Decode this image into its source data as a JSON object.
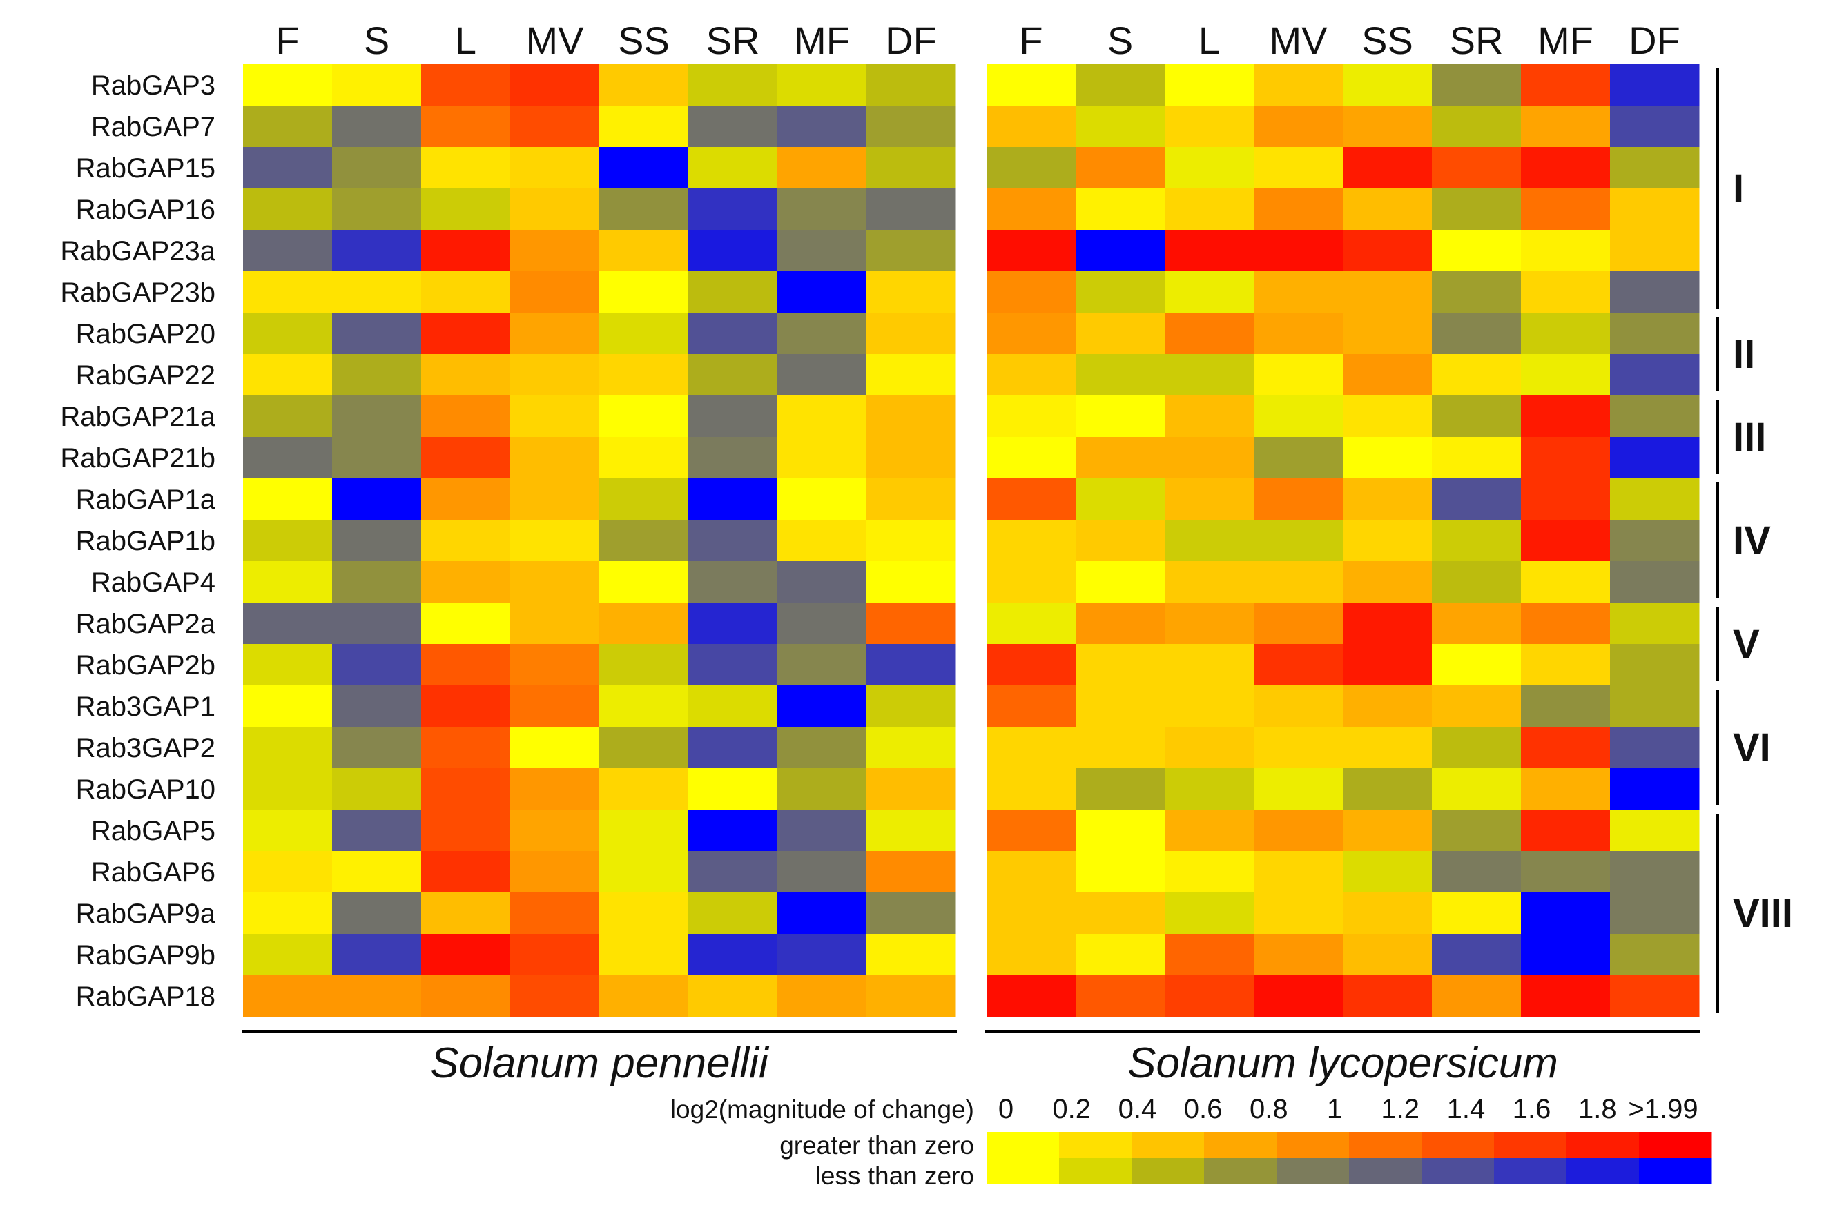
{
  "chart_data": {
    "type": "heatmap",
    "conditions": [
      "F",
      "S",
      "L",
      "MV",
      "SS",
      "SR",
      "MF",
      "DF"
    ],
    "genes": [
      "RabGAP3",
      "RabGAP7",
      "RabGAP15",
      "RabGAP16",
      "RabGAP23a",
      "RabGAP23b",
      "RabGAP20",
      "RabGAP22",
      "RabGAP21a",
      "RabGAP21b",
      "RabGAP1a",
      "RabGAP1b",
      "RabGAP4",
      "RabGAP2a",
      "RabGAP2b",
      "Rab3GAP1",
      "Rab3GAP2",
      "RabGAP10",
      "RabGAP5",
      "RabGAP6",
      "RabGAP9a",
      "RabGAP9b",
      "RabGAP18"
    ],
    "value_note": "signed log2(magnitude of change); positive = greater than zero (yellow-to-red), negative = less than zero (yellow-to-blue)",
    "panels": [
      {
        "species": "Solanum pennellii",
        "values": [
          [
            0.0,
            0.1,
            1.4,
            1.6,
            0.4,
            -0.3,
            -0.2,
            -0.4
          ],
          [
            -0.5,
            -1.0,
            1.1,
            1.4,
            0.1,
            -1.0,
            -1.2,
            -0.6
          ],
          [
            -1.2,
            -0.7,
            0.2,
            0.3,
            -2.0,
            -0.2,
            0.7,
            -0.4
          ],
          [
            -0.4,
            -0.6,
            -0.3,
            0.4,
            -0.7,
            -1.6,
            -0.8,
            -1.0
          ],
          [
            -1.1,
            -1.6,
            1.8,
            0.8,
            0.4,
            -1.8,
            -0.9,
            -0.6
          ],
          [
            0.2,
            0.2,
            0.3,
            0.9,
            0.0,
            -0.4,
            -2.0,
            0.3
          ],
          [
            -0.3,
            -1.2,
            1.7,
            0.7,
            -0.2,
            -1.3,
            -0.8,
            0.4
          ],
          [
            0.2,
            -0.5,
            0.5,
            0.4,
            0.3,
            -0.5,
            -1.0,
            0.1
          ],
          [
            -0.5,
            -0.8,
            0.9,
            0.3,
            0.0,
            -1.0,
            0.2,
            0.5
          ],
          [
            -1.0,
            -0.8,
            1.5,
            0.5,
            0.1,
            -0.9,
            0.2,
            0.5
          ],
          [
            0.0,
            -2.0,
            0.8,
            0.5,
            -0.3,
            -2.0,
            0.0,
            0.4
          ],
          [
            -0.3,
            -1.0,
            0.3,
            0.2,
            -0.6,
            -1.2,
            0.2,
            0.1
          ],
          [
            -0.1,
            -0.7,
            0.6,
            0.5,
            0.0,
            -0.9,
            -1.1,
            0.0
          ],
          [
            -1.1,
            -1.1,
            0.0,
            0.5,
            0.6,
            -1.7,
            -1.0,
            1.2
          ],
          [
            -0.2,
            -1.4,
            1.3,
            1.0,
            -0.3,
            -1.4,
            -0.8,
            -1.5
          ],
          [
            0.0,
            -1.1,
            1.6,
            1.1,
            -0.1,
            -0.2,
            -2.0,
            -0.3
          ],
          [
            -0.2,
            -0.8,
            1.3,
            0.0,
            -0.5,
            -1.4,
            -0.7,
            -0.1
          ],
          [
            -0.2,
            -0.3,
            1.4,
            0.8,
            0.3,
            0.0,
            -0.5,
            0.5
          ],
          [
            -0.1,
            -1.2,
            1.4,
            0.7,
            -0.1,
            -2.0,
            -1.2,
            -0.1
          ],
          [
            0.2,
            0.1,
            1.6,
            0.8,
            -0.1,
            -1.2,
            -1.0,
            0.9
          ],
          [
            0.1,
            -1.0,
            0.5,
            1.2,
            0.2,
            -0.3,
            -2.0,
            -0.8
          ],
          [
            -0.2,
            -1.5,
            1.9,
            1.5,
            0.2,
            -1.7,
            -1.6,
            0.1
          ],
          [
            0.8,
            0.8,
            0.9,
            1.4,
            0.6,
            0.4,
            0.7,
            0.6
          ]
        ]
      },
      {
        "species": "Solanum lycopersicum",
        "values": [
          [
            0.0,
            -0.4,
            0.0,
            0.4,
            -0.1,
            -0.7,
            1.5,
            -1.7
          ],
          [
            0.5,
            -0.2,
            0.3,
            0.8,
            0.7,
            -0.4,
            0.7,
            -1.4
          ],
          [
            -0.5,
            0.9,
            -0.1,
            0.2,
            1.8,
            1.4,
            1.8,
            -0.5
          ],
          [
            0.8,
            0.1,
            0.3,
            0.9,
            0.5,
            -0.5,
            1.1,
            0.4
          ],
          [
            1.9,
            -2.0,
            1.9,
            1.9,
            1.7,
            0.0,
            0.1,
            0.4
          ],
          [
            0.9,
            -0.3,
            -0.1,
            0.6,
            0.6,
            -0.6,
            0.3,
            -1.1
          ],
          [
            0.8,
            0.4,
            1.0,
            0.7,
            0.6,
            -0.8,
            -0.3,
            -0.7
          ],
          [
            0.4,
            -0.3,
            -0.3,
            0.1,
            0.8,
            0.2,
            -0.1,
            -1.4
          ],
          [
            0.1,
            0.0,
            0.5,
            -0.1,
            0.2,
            -0.5,
            1.8,
            -0.7
          ],
          [
            0.0,
            0.6,
            0.6,
            -0.6,
            0.0,
            0.1,
            1.6,
            -1.8
          ],
          [
            1.3,
            -0.2,
            0.5,
            1.0,
            0.5,
            -1.3,
            1.6,
            -0.3
          ],
          [
            0.3,
            0.4,
            -0.3,
            -0.3,
            0.3,
            -0.3,
            1.8,
            -0.8
          ],
          [
            0.3,
            0.0,
            0.4,
            0.4,
            0.6,
            -0.4,
            0.2,
            -0.9
          ],
          [
            -0.1,
            0.8,
            0.7,
            0.9,
            1.8,
            0.7,
            1.0,
            -0.3
          ],
          [
            1.6,
            0.3,
            0.3,
            1.6,
            1.8,
            0.0,
            0.3,
            -0.5
          ],
          [
            1.2,
            0.3,
            0.3,
            0.4,
            0.6,
            0.5,
            -0.7,
            -0.5
          ],
          [
            0.3,
            0.3,
            0.4,
            0.3,
            0.3,
            -0.4,
            1.6,
            -1.3
          ],
          [
            0.3,
            -0.5,
            -0.3,
            -0.1,
            -0.5,
            -0.1,
            0.6,
            -2.0
          ],
          [
            1.1,
            0.0,
            0.6,
            0.8,
            0.6,
            -0.6,
            1.7,
            -0.1
          ],
          [
            0.4,
            0.0,
            0.1,
            0.3,
            -0.2,
            -0.9,
            -0.8,
            -0.9
          ],
          [
            0.4,
            0.4,
            -0.2,
            0.3,
            0.4,
            0.1,
            -2.0,
            -0.9
          ],
          [
            0.4,
            0.1,
            1.2,
            0.8,
            0.5,
            -1.4,
            -2.0,
            -0.6
          ],
          [
            1.9,
            1.3,
            1.5,
            1.9,
            1.6,
            0.8,
            1.9,
            1.5
          ]
        ]
      }
    ],
    "groups": [
      {
        "label": "I",
        "start": 0,
        "end": 5
      },
      {
        "label": "II",
        "start": 6,
        "end": 7
      },
      {
        "label": "III",
        "start": 8,
        "end": 9
      },
      {
        "label": "IV",
        "start": 10,
        "end": 12
      },
      {
        "label": "V",
        "start": 13,
        "end": 14
      },
      {
        "label": "VI",
        "start": 15,
        "end": 17
      },
      {
        "label": "VIII",
        "start": 18,
        "end": 22
      }
    ],
    "legend": {
      "title": "log2(magnitude of change)",
      "ticks": [
        "0",
        "0.2",
        "0.4",
        "0.6",
        "0.8",
        "1",
        "1.2",
        "1.4",
        "1.6",
        "1.8",
        ">1.99"
      ],
      "row_labels": [
        "greater than zero",
        "less than zero"
      ],
      "positive_colors": [
        "#ffff00",
        "#ffe000",
        "#ffc400",
        "#ffa800",
        "#ff8c00",
        "#ff7000",
        "#ff5400",
        "#ff3800",
        "#ff1c00",
        "#ff0000"
      ],
      "negative_colors": [
        "#ffff00",
        "#d8d800",
        "#b5b512",
        "#959538",
        "#7c7c5c",
        "#656578",
        "#4e4e9a",
        "#3636bc",
        "#1c1cdc",
        "#0000ff"
      ]
    },
    "colors": {
      "zero": "#ffff00",
      "positive_max": "#ff0000",
      "negative_max": "#0000ff",
      "text": "#111111",
      "rule": "#000000"
    }
  }
}
